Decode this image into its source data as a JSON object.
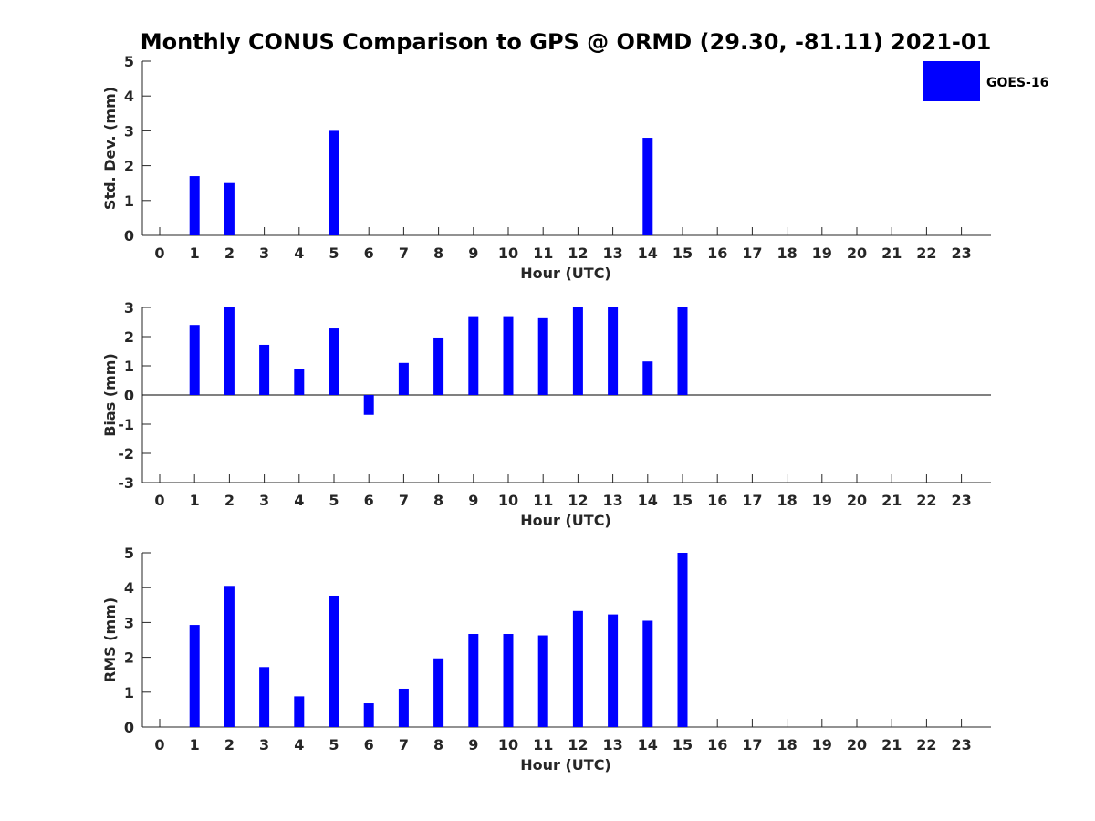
{
  "chart_data": {
    "type": "bar",
    "title": "Monthly CONUS Comparison to GPS @ ORMD (29.30, -81.11) 2021-01",
    "legend": {
      "label": "GOES-16",
      "color": "#0000ff",
      "placement": "top-right"
    },
    "categories": [
      "0",
      "1",
      "2",
      "3",
      "4",
      "5",
      "6",
      "7",
      "8",
      "9",
      "10",
      "11",
      "12",
      "13",
      "14",
      "15",
      "16",
      "17",
      "18",
      "19",
      "20",
      "21",
      "22",
      "23"
    ],
    "panels": [
      {
        "id": "stddev",
        "ylabel": "Std. Dev. (mm)",
        "xlabel": "Hour (UTC)",
        "ylim": [
          0,
          5
        ],
        "yticks": [
          "0",
          "1",
          "2",
          "3",
          "4",
          "5"
        ],
        "series": [
          {
            "name": "GOES-16",
            "values": [
              null,
              1.7,
              1.5,
              null,
              null,
              3.0,
              null,
              null,
              null,
              null,
              null,
              null,
              null,
              null,
              2.8,
              null,
              null,
              null,
              null,
              null,
              null,
              null,
              null,
              null
            ]
          }
        ]
      },
      {
        "id": "bias",
        "ylabel": "Bias (mm)",
        "xlabel": "Hour (UTC)",
        "ylim": [
          -3,
          3
        ],
        "yticks": [
          "-3",
          "-2",
          "-1",
          "0",
          "1",
          "2",
          "3"
        ],
        "zero_line": true,
        "series": [
          {
            "name": "GOES-16",
            "values": [
              null,
              2.4,
              3.0,
              1.72,
              0.88,
              2.28,
              -0.68,
              1.1,
              1.97,
              2.7,
              2.7,
              2.63,
              3.0,
              3.0,
              1.15,
              3.0,
              null,
              null,
              null,
              null,
              null,
              null,
              null,
              null
            ]
          }
        ]
      },
      {
        "id": "rms",
        "ylabel": "RMS (mm)",
        "xlabel": "Hour (UTC)",
        "ylim": [
          0,
          5
        ],
        "yticks": [
          "0",
          "1",
          "2",
          "3",
          "4",
          "5"
        ],
        "series": [
          {
            "name": "GOES-16",
            "values": [
              null,
              2.93,
              4.05,
              1.72,
              0.88,
              3.77,
              0.68,
              1.1,
              1.97,
              2.67,
              2.67,
              2.63,
              3.33,
              3.23,
              3.05,
              5.0,
              null,
              null,
              null,
              null,
              null,
              null,
              null,
              null
            ]
          }
        ]
      }
    ]
  }
}
